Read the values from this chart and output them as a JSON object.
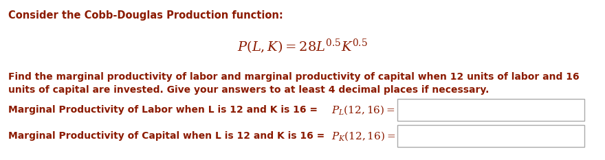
{
  "background_color": "#ffffff",
  "title_text": "Consider the Cobb-Douglas Production function:",
  "title_color": "#8B1A00",
  "title_fontsize": 10.5,
  "formula_color": "#8B1A00",
  "body_color": "#8B1A00",
  "body_text": "Find the marginal productivity of labor and marginal productivity of capital when 12 units of labor and 16\nunits of capital are invested. Give your answers to at least 4 decimal places if necessary.",
  "body_fontsize": 10.0,
  "label_fontsize": 10.0,
  "label_color": "#8B1A00",
  "math_fontsize": 11,
  "box_edgecolor": "#aaaaaa",
  "box_fill": "#ffffff",
  "label1_text": "Marginal Productivity of Labor when L is 12 and K is 16 = ",
  "label2_text": "Marginal Productivity of Capital when L is 12 and K is 16 = ",
  "math1": "$P_L(12, 16) =$",
  "math2": "$P_K(12, 16) =$"
}
